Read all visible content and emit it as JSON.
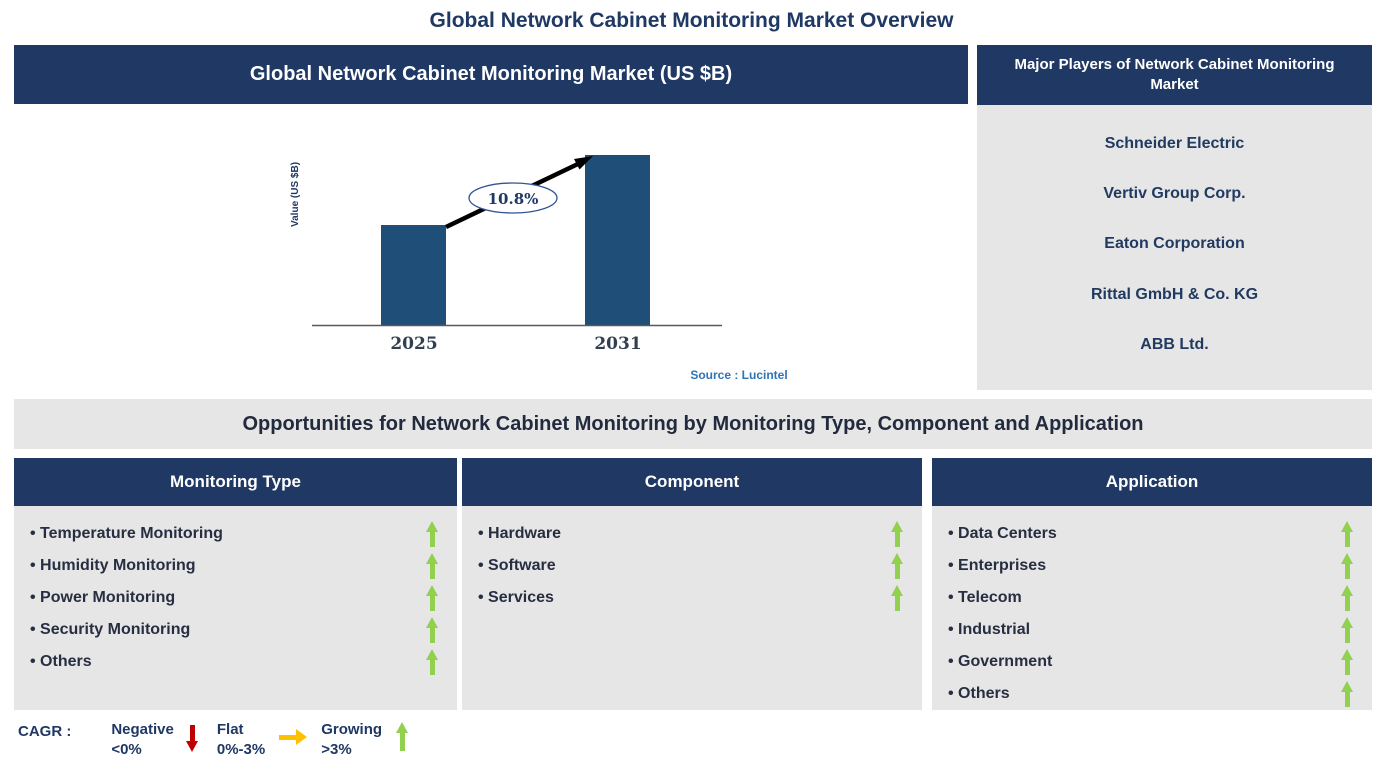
{
  "page_title": "Global Network Cabinet Monitoring Market Overview",
  "market_chart": {
    "header": "Global Network Cabinet Monitoring Market (US $B)",
    "y_axis_label": "Value (US $B)",
    "cagr_annotation": "10.8%",
    "source": "Source : Lucintel"
  },
  "chart_data": {
    "type": "bar",
    "title": "Global Network Cabinet Monitoring Market (US $B)",
    "categories": [
      "2025",
      "2031"
    ],
    "values": [
      100,
      170
    ],
    "values_note": "no numeric y-axis shown; values are relative bar heights",
    "xlabel": "",
    "ylabel": "Value (US $B)",
    "annotation": "10.8%",
    "bar_color": "#1F4E79",
    "grid": false,
    "legend_position": "none"
  },
  "major_players": {
    "header": "Major Players of Network Cabinet Monitoring Market",
    "companies": [
      "Schneider Electric",
      "Vertiv Group Corp.",
      "Eaton Corporation",
      "Rittal GmbH & Co. KG",
      "ABB Ltd."
    ]
  },
  "opportunities": {
    "banner": "Opportunities for Network Cabinet Monitoring by Monitoring Type, Component and Application",
    "columns": [
      {
        "header": "Monitoring Type",
        "items": [
          "Temperature Monitoring",
          "Humidity Monitoring",
          "Power Monitoring",
          "Security Monitoring",
          "Others"
        ]
      },
      {
        "header": "Component",
        "items": [
          "Hardware",
          "Software",
          "Services"
        ]
      },
      {
        "header": "Application",
        "items": [
          "Data Centers",
          "Enterprises",
          "Telecom",
          "Industrial",
          "Government",
          "Others"
        ]
      }
    ],
    "trend_icon": "up-arrow"
  },
  "legend": {
    "label": "CAGR :",
    "entries": [
      {
        "name": "Negative",
        "range": "<0%",
        "direction": "down",
        "color": "#C00000"
      },
      {
        "name": "Flat",
        "range": "0%-3%",
        "direction": "right",
        "color": "#FFC000"
      },
      {
        "name": "Growing",
        "range": ">3%",
        "direction": "up",
        "color": "#92D050"
      }
    ]
  },
  "colors": {
    "header_navy": "#1F3864",
    "bar_blue": "#1F4E79",
    "panel_gray": "#E7E6E6",
    "growing_green": "#92D050",
    "flat_yellow": "#FFC000",
    "negative_red": "#C00000",
    "source_blue": "#2E75B6"
  }
}
